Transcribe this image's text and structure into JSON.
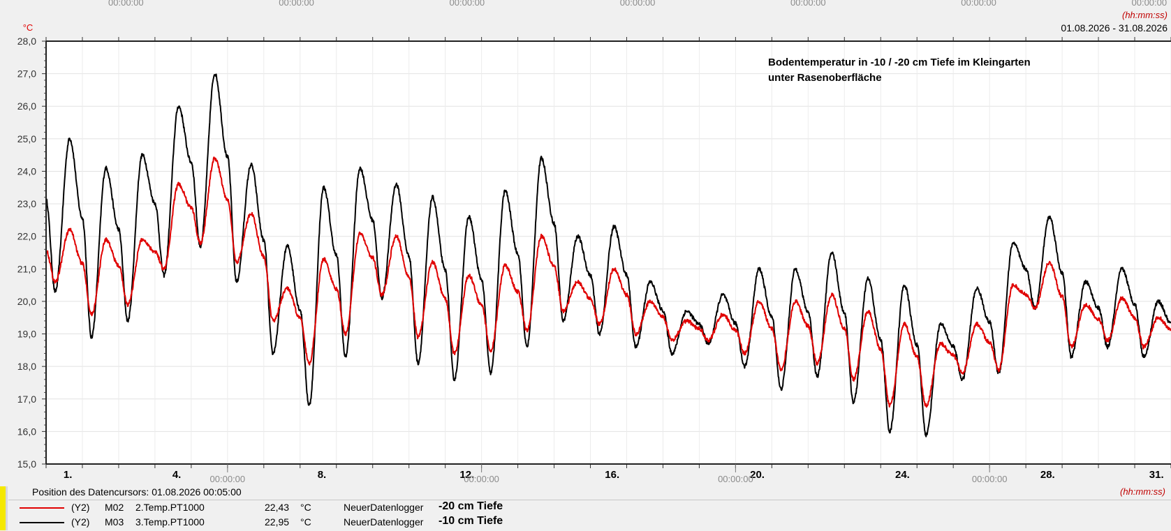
{
  "chart_data": {
    "type": "line",
    "title": "Bodentemperatur in -10 / -20 cm Tiefe im Kleingarten unter Rasenoberfläche",
    "title_lines": [
      "Bodentemperatur in -10 / -20 cm Tiefe im Kleingarten",
      "unter Rasenoberfläche"
    ],
    "date_range": "01.08.2026 - 31.08.2026",
    "ylabel": "°C",
    "time_format": "(hh:mm:ss)",
    "ylim": [
      15.0,
      28.0
    ],
    "y_ticks": [
      "15,0",
      "16,0",
      "17,0",
      "18,0",
      "19,0",
      "20,0",
      "21,0",
      "22,0",
      "23,0",
      "24,0",
      "25,0",
      "26,0",
      "27,0",
      "28,0"
    ],
    "xlim": [
      1,
      32
    ],
    "day_labels": [
      {
        "day": 1.6,
        "label": "1."
      },
      {
        "day": 4.6,
        "label": "4."
      },
      {
        "day": 8.6,
        "label": "8."
      },
      {
        "day": 12.6,
        "label": "12."
      },
      {
        "day": 16.6,
        "label": "16."
      },
      {
        "day": 20.6,
        "label": "20."
      },
      {
        "day": 24.6,
        "label": "24."
      },
      {
        "day": 28.6,
        "label": "28."
      },
      {
        "day": 31.6,
        "label": "31."
      }
    ],
    "time_ticks_bottom": [
      {
        "day": 6.0,
        "label": "00:00:00"
      },
      {
        "day": 13.0,
        "label": "00:00:00"
      },
      {
        "day": 20.0,
        "label": "00:00:00"
      },
      {
        "day": 27.0,
        "label": "00:00:00"
      }
    ],
    "time_ticks_top": [
      {
        "day": 3.2,
        "label": "00:00:00"
      },
      {
        "day": 7.9,
        "label": "00:00:00"
      },
      {
        "day": 12.6,
        "label": "00:00:00"
      },
      {
        "day": 17.3,
        "label": "00:00:00"
      },
      {
        "day": 22.0,
        "label": "00:00:00"
      },
      {
        "day": 26.7,
        "label": "00:00:00"
      },
      {
        "day": 31.4,
        "label": "00:00:00"
      }
    ],
    "series": [
      {
        "name": "3.Temp.PT1000",
        "color": "#000000",
        "daily": [
          {
            "min": 20.3,
            "max": 25.0
          },
          {
            "min": 18.9,
            "max": 24.1
          },
          {
            "min": 19.4,
            "max": 24.5
          },
          {
            "min": 20.8,
            "max": 26.0
          },
          {
            "min": 21.7,
            "max": 27.0
          },
          {
            "min": 20.6,
            "max": 24.2
          },
          {
            "min": 18.4,
            "max": 21.7
          },
          {
            "min": 16.8,
            "max": 23.5
          },
          {
            "min": 18.3,
            "max": 24.1
          },
          {
            "min": 20.1,
            "max": 23.6
          },
          {
            "min": 18.1,
            "max": 23.2
          },
          {
            "min": 17.6,
            "max": 22.6
          },
          {
            "min": 17.8,
            "max": 23.4
          },
          {
            "min": 18.6,
            "max": 24.4
          },
          {
            "min": 19.4,
            "max": 22.0
          },
          {
            "min": 19.0,
            "max": 22.3
          },
          {
            "min": 18.6,
            "max": 20.6
          },
          {
            "min": 18.4,
            "max": 19.7
          },
          {
            "min": 18.7,
            "max": 20.2
          },
          {
            "min": 18.0,
            "max": 21.0
          },
          {
            "min": 17.3,
            "max": 21.0
          },
          {
            "min": 17.7,
            "max": 21.5
          },
          {
            "min": 16.9,
            "max": 20.7
          },
          {
            "min": 16.0,
            "max": 20.5
          },
          {
            "min": 15.9,
            "max": 19.3
          },
          {
            "min": 17.6,
            "max": 20.4
          },
          {
            "min": 17.8,
            "max": 21.8
          },
          {
            "min": 19.8,
            "max": 22.6
          },
          {
            "min": 18.3,
            "max": 20.6
          },
          {
            "min": 18.6,
            "max": 21.0
          },
          {
            "min": 18.3,
            "max": 20.0
          }
        ]
      },
      {
        "name": "2.Temp.PT1000",
        "color": "#e00000",
        "daily": [
          {
            "min": 20.6,
            "max": 22.2
          },
          {
            "min": 19.6,
            "max": 21.9
          },
          {
            "min": 19.9,
            "max": 21.9
          },
          {
            "min": 21.0,
            "max": 23.6
          },
          {
            "min": 21.8,
            "max": 24.4
          },
          {
            "min": 21.2,
            "max": 22.7
          },
          {
            "min": 19.4,
            "max": 20.4
          },
          {
            "min": 18.1,
            "max": 21.3
          },
          {
            "min": 19.0,
            "max": 22.1
          },
          {
            "min": 20.2,
            "max": 22.0
          },
          {
            "min": 18.9,
            "max": 21.2
          },
          {
            "min": 18.4,
            "max": 20.8
          },
          {
            "min": 18.5,
            "max": 21.1
          },
          {
            "min": 19.1,
            "max": 22.0
          },
          {
            "min": 19.7,
            "max": 20.6
          },
          {
            "min": 19.3,
            "max": 21.0
          },
          {
            "min": 19.0,
            "max": 20.0
          },
          {
            "min": 18.8,
            "max": 19.4
          },
          {
            "min": 18.8,
            "max": 19.6
          },
          {
            "min": 18.4,
            "max": 20.0
          },
          {
            "min": 17.9,
            "max": 20.0
          },
          {
            "min": 18.1,
            "max": 20.2
          },
          {
            "min": 17.6,
            "max": 19.7
          },
          {
            "min": 16.8,
            "max": 19.3
          },
          {
            "min": 16.8,
            "max": 18.7
          },
          {
            "min": 17.8,
            "max": 19.3
          },
          {
            "min": 17.9,
            "max": 20.5
          },
          {
            "min": 19.8,
            "max": 21.2
          },
          {
            "min": 18.6,
            "max": 19.9
          },
          {
            "min": 18.8,
            "max": 20.1
          },
          {
            "min": 18.6,
            "max": 19.5
          }
        ]
      }
    ]
  },
  "cursor": {
    "text": "Position des Datencursors: 01.08.2026 00:05:00",
    "hhmm": "(hh:mm:ss)"
  },
  "legend": [
    {
      "axis": "(Y2)",
      "channel": "M02",
      "sensor": "2.Temp.PT1000",
      "value": "22,43",
      "unit": "°C",
      "logger": "NeuerDatenlogger",
      "depth": "-20 cm Tiefe",
      "color": "#e00000"
    },
    {
      "axis": "(Y2)",
      "channel": "M03",
      "sensor": "3.Temp.PT1000",
      "value": "22,95",
      "unit": "°C",
      "logger": "NeuerDatenlogger",
      "depth": "-10 cm Tiefe",
      "color": "#000000"
    }
  ]
}
